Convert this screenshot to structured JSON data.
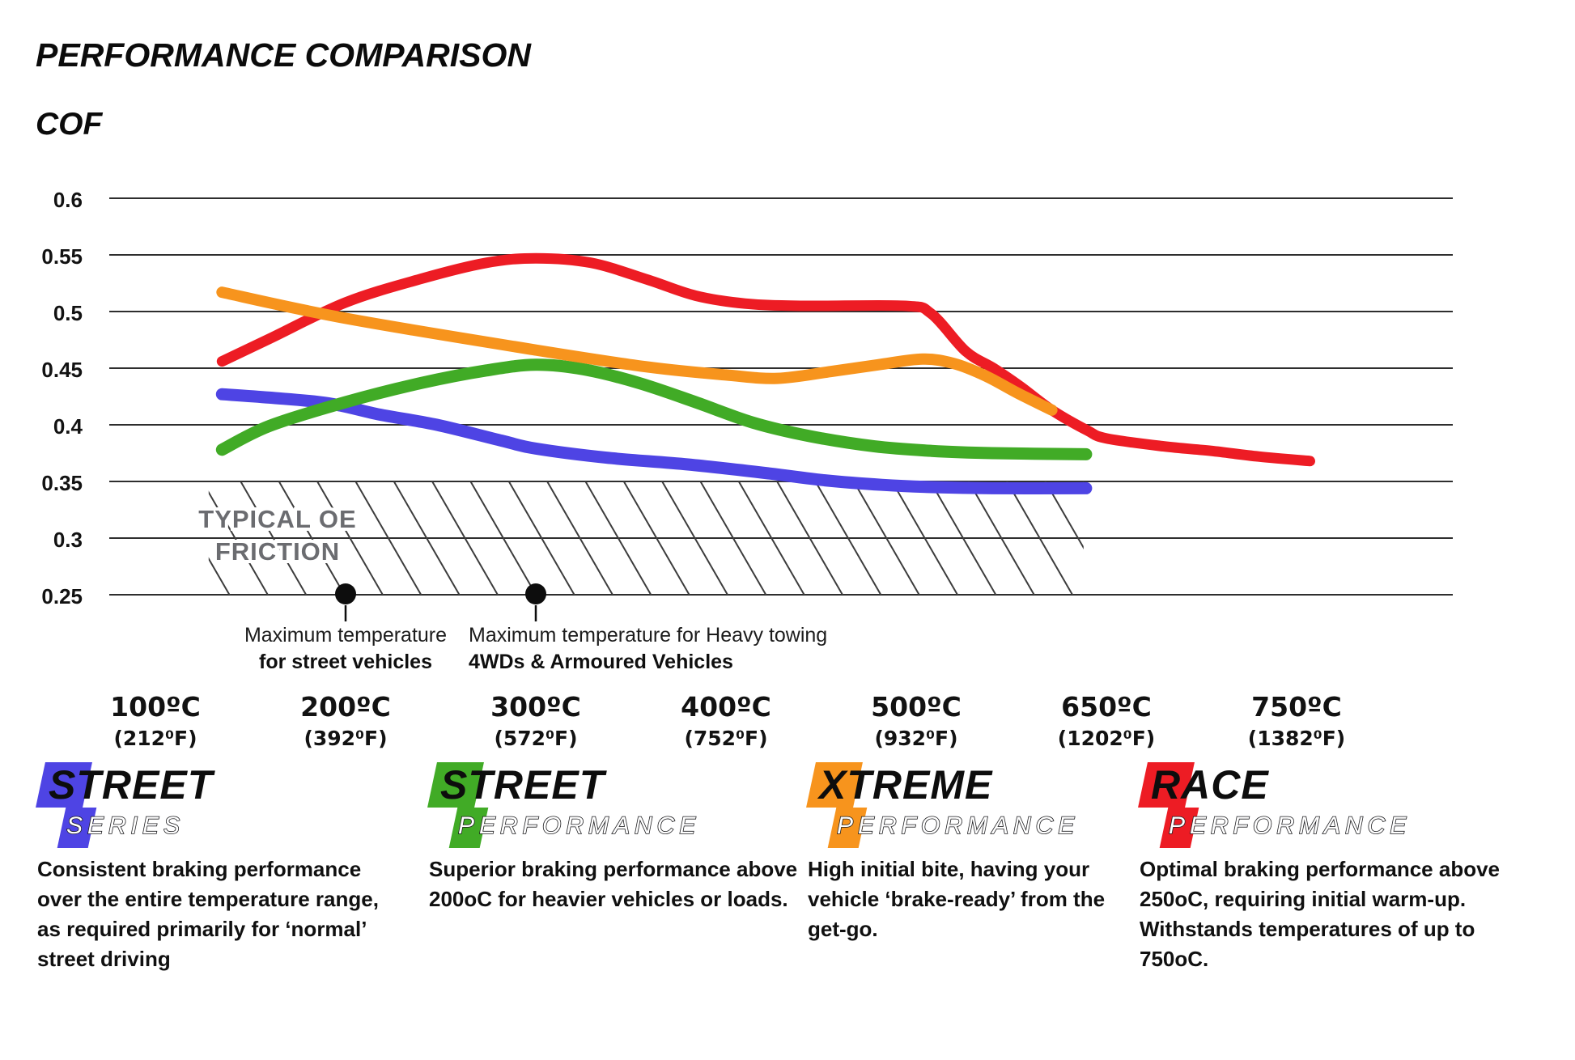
{
  "header": {
    "title": "PERFORMANCE COMPARISON",
    "y_axis_title": "COF"
  },
  "chart_data": {
    "type": "line",
    "title": "PERFORMANCE COMPARISON",
    "ylabel": "COF",
    "ylim": [
      0.25,
      0.6
    ],
    "grid": "horizontal",
    "legend_position": "bottom",
    "y_ticks": [
      "0.6",
      "0.55",
      "0.5",
      "0.45",
      "0.4",
      "0.35",
      "0.3",
      "0.25"
    ],
    "x_ticks": [
      {
        "temp": 100,
        "celsius": "100ºC",
        "fahrenheit": "(212⁰F)"
      },
      {
        "temp": 200,
        "celsius": "200ºC",
        "fahrenheit": "(392⁰F)"
      },
      {
        "temp": 300,
        "celsius": "300ºC",
        "fahrenheit": "(572⁰F)"
      },
      {
        "temp": 400,
        "celsius": "400ºC",
        "fahrenheit": "(752⁰F)"
      },
      {
        "temp": 500,
        "celsius": "500ºC",
        "fahrenheit": "(932⁰F)"
      },
      {
        "temp": 650,
        "celsius": "650ºC",
        "fahrenheit": "(1202⁰F)"
      },
      {
        "temp": 750,
        "celsius": "750ºC",
        "fahrenheit": "(1382⁰F)"
      }
    ],
    "series": [
      {
        "name": "Street Series",
        "color": "#4e44e4",
        "stroke_width": 15,
        "points": [
          [
            135,
            0.427
          ],
          [
            160,
            0.424
          ],
          [
            191,
            0.419
          ],
          [
            218,
            0.409
          ],
          [
            248,
            0.4
          ],
          [
            282,
            0.386
          ],
          [
            300,
            0.379
          ],
          [
            337,
            0.371
          ],
          [
            380,
            0.365
          ],
          [
            423,
            0.357
          ],
          [
            452,
            0.351
          ],
          [
            482,
            0.347
          ],
          [
            512,
            0.345
          ],
          [
            560,
            0.344
          ],
          [
            634,
            0.344
          ]
        ]
      },
      {
        "name": "Street Performance",
        "color": "#41ab26",
        "stroke_width": 15,
        "points": [
          [
            135,
            0.378
          ],
          [
            160,
            0.399
          ],
          [
            200,
            0.42
          ],
          [
            240,
            0.437
          ],
          [
            274,
            0.448
          ],
          [
            300,
            0.453
          ],
          [
            325,
            0.449
          ],
          [
            354,
            0.437
          ],
          [
            384,
            0.42
          ],
          [
            414,
            0.402
          ],
          [
            444,
            0.39
          ],
          [
            478,
            0.381
          ],
          [
            512,
            0.377
          ],
          [
            560,
            0.375
          ],
          [
            634,
            0.374
          ]
        ]
      },
      {
        "name": "Race Performance",
        "color": "#ed1c24",
        "stroke_width": 13,
        "points": [
          [
            135,
            0.456
          ],
          [
            160,
            0.476
          ],
          [
            200,
            0.508
          ],
          [
            240,
            0.529
          ],
          [
            274,
            0.543
          ],
          [
            300,
            0.547
          ],
          [
            329,
            0.543
          ],
          [
            359,
            0.528
          ],
          [
            384,
            0.514
          ],
          [
            410,
            0.507
          ],
          [
            440,
            0.505
          ],
          [
            494,
            0.505
          ],
          [
            512,
            0.498
          ],
          [
            539,
            0.465
          ],
          [
            561,
            0.45
          ],
          [
            582,
            0.434
          ],
          [
            607,
            0.413
          ],
          [
            635,
            0.395
          ],
          [
            650,
            0.388
          ],
          [
            680,
            0.381
          ],
          [
            705,
            0.377
          ],
          [
            730,
            0.372
          ],
          [
            757,
            0.368
          ]
        ]
      },
      {
        "name": "Xtreme Performance",
        "color": "#f7941d",
        "stroke_width": 14,
        "points": [
          [
            135,
            0.517
          ],
          [
            200,
            0.494
          ],
          [
            300,
            0.466
          ],
          [
            359,
            0.451
          ],
          [
            400,
            0.444
          ],
          [
            427,
            0.441
          ],
          [
            455,
            0.447
          ],
          [
            480,
            0.453
          ],
          [
            505,
            0.458
          ],
          [
            530,
            0.454
          ],
          [
            555,
            0.443
          ],
          [
            580,
            0.428
          ],
          [
            607,
            0.413
          ]
        ]
      }
    ],
    "oe_band": {
      "line1": "TYPICAL OE",
      "line2": "FRICTION",
      "cof_range": [
        0.25,
        0.35
      ],
      "temp_range": [
        128,
        632
      ]
    },
    "annotations": [
      {
        "temp": 200,
        "cof": 0.25,
        "line1": "Maximum temperature",
        "line2": "for street vehicles"
      },
      {
        "temp": 300,
        "cof": 0.25,
        "line1": "Maximum temperature for Heavy towing",
        "line2": "4WDs & Armoured Vehicles"
      }
    ]
  },
  "legend": [
    {
      "line1": "STREET",
      "line2": "SERIES",
      "color": "#4e44e4",
      "description": "Consistent braking performance over the entire temperature range, as required primarily for ‘normal’ street driving"
    },
    {
      "line1": "STREET",
      "line2": "PERFORMANCE",
      "color": "#41ab26",
      "description": "Superior braking performance above 200oC for heavier vehicles or loads."
    },
    {
      "line1": "XTREME",
      "line2": "PERFORMANCE",
      "color": "#f7941d",
      "description": "High initial bite, having your vehicle ‘brake-ready’ from the get-go."
    },
    {
      "line1": "RACE",
      "line2": "PERFORMANCE",
      "color": "#ed1c24",
      "description": "Optimal braking performance above 250oC, requiring initial warm-up. Withstands temperatures of up to 750oC."
    }
  ]
}
